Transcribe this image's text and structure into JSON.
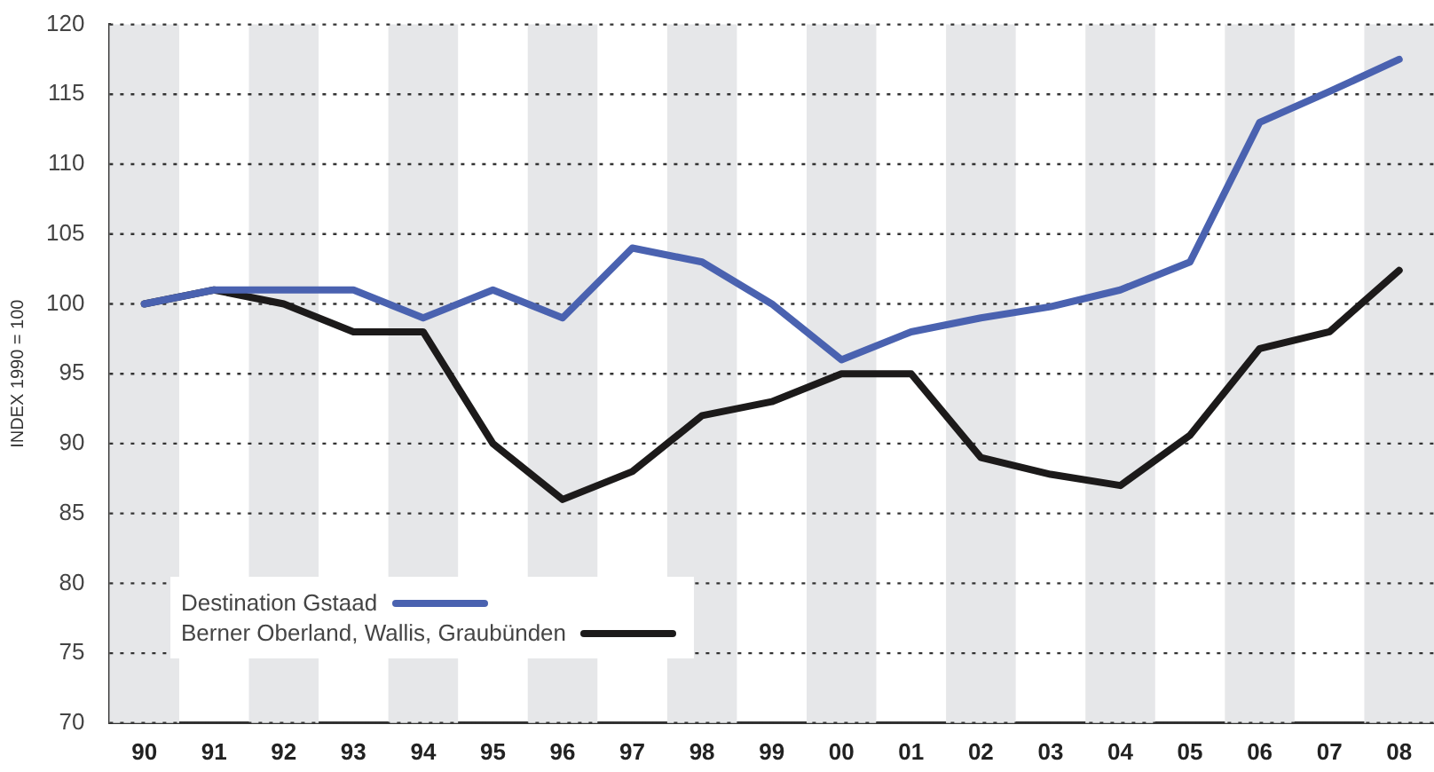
{
  "chart_data": {
    "type": "line",
    "ylabel": "INDEX 1990 = 100",
    "categories": [
      "90",
      "91",
      "92",
      "93",
      "94",
      "95",
      "96",
      "97",
      "98",
      "99",
      "00",
      "01",
      "02",
      "03",
      "04",
      "05",
      "06",
      "07",
      "08"
    ],
    "series": [
      {
        "name": "Destination Gstaad",
        "color": "#4a62b0",
        "values": [
          100,
          101,
          101,
          101,
          99,
          101,
          99,
          104,
          103,
          100,
          96,
          98,
          99,
          99.8,
          101,
          103,
          113,
          115.2,
          117.5
        ]
      },
      {
        "name": "Berner Oberland, Wallis, Graubünden",
        "color": "#1c1a1a",
        "values": [
          100,
          101,
          100,
          98,
          98,
          90,
          86,
          88,
          92,
          93,
          95,
          95,
          89,
          87.8,
          87,
          90.6,
          96.8,
          98,
          102.4
        ]
      }
    ],
    "ylim": [
      70,
      120
    ],
    "yticks": [
      70,
      75,
      80,
      85,
      90,
      95,
      100,
      105,
      110,
      115,
      120
    ],
    "grid": "y",
    "legend": "bottom left",
    "marker": "none",
    "line_style": "solid"
  }
}
